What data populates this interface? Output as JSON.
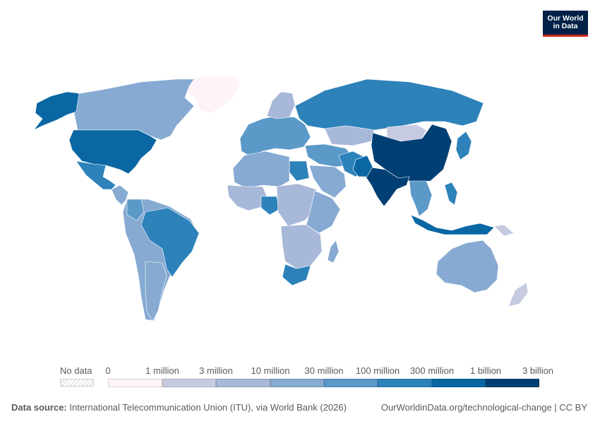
{
  "logo": {
    "line1": "Our World",
    "line2": "in Data"
  },
  "legend": {
    "no_data": "No data",
    "bins": [
      {
        "label": "0",
        "color": "#fdf3f8"
      },
      {
        "label": "1 million",
        "color": "#e1e0ee"
      },
      {
        "label": "3 million",
        "color": "#c6cbe2"
      },
      {
        "label": "10 million",
        "color": "#a7b8d8"
      },
      {
        "label": "30 million",
        "color": "#86aad2"
      },
      {
        "label": "100 million",
        "color": "#5b99c8"
      },
      {
        "label": "300 million",
        "color": "#2d82ba"
      },
      {
        "label": "1 billion",
        "color": "#0a67a3"
      },
      {
        "label": "3 billion",
        "color": "#003f74"
      }
    ]
  },
  "footer": {
    "source_label": "Data source:",
    "source_text": " International Telecommunication Union (ITU), via World Bank (2026)",
    "url": "OurWorldinData.org/technological-change | CC BY"
  },
  "map_regions": [
    {
      "name": "Greenland",
      "color": "#fdf3f8"
    },
    {
      "name": "Canada",
      "color": "#86aad2"
    },
    {
      "name": "Alaska",
      "color": "#0a67a3"
    },
    {
      "name": "United States",
      "color": "#0a67a3"
    },
    {
      "name": "Mexico",
      "color": "#2d82ba"
    },
    {
      "name": "Central America",
      "color": "#86aad2"
    },
    {
      "name": "South America",
      "color": "#86aad2"
    },
    {
      "name": "Brazil",
      "color": "#2d82ba"
    },
    {
      "name": "Argentina",
      "color": "#86aad2"
    },
    {
      "name": "Colombia",
      "color": "#5b99c8"
    },
    {
      "name": "Europe",
      "color": "#5b99c8"
    },
    {
      "name": "Scandinavia",
      "color": "#a7b8d8"
    },
    {
      "name": "Russia",
      "color": "#2d82ba"
    },
    {
      "name": "Kazakhstan",
      "color": "#a7b8d8"
    },
    {
      "name": "Middle East",
      "color": "#5b99c8"
    },
    {
      "name": "Iran",
      "color": "#2d82ba"
    },
    {
      "name": "Saudi Arabia",
      "color": "#86aad2"
    },
    {
      "name": "Egypt",
      "color": "#2d82ba"
    },
    {
      "name": "North Africa",
      "color": "#86aad2"
    },
    {
      "name": "West Africa",
      "color": "#a7b8d8"
    },
    {
      "name": "Nigeria",
      "color": "#2d82ba"
    },
    {
      "name": "Central Africa",
      "color": "#a7b8d8"
    },
    {
      "name": "East Africa",
      "color": "#86aad2"
    },
    {
      "name": "Southern Africa",
      "color": "#a7b8d8"
    },
    {
      "name": "South Africa",
      "color": "#2d82ba"
    },
    {
      "name": "Madagascar",
      "color": "#86aad2"
    },
    {
      "name": "Mongolia",
      "color": "#c6cbe2"
    },
    {
      "name": "China",
      "color": "#003f74"
    },
    {
      "name": "India",
      "color": "#003f74"
    },
    {
      "name": "Pakistan",
      "color": "#0a67a3"
    },
    {
      "name": "Southeast Asia",
      "color": "#5b99c8"
    },
    {
      "name": "Indonesia",
      "color": "#0a67a3"
    },
    {
      "name": "Japan",
      "color": "#2d82ba"
    },
    {
      "name": "Philippines",
      "color": "#2d82ba"
    },
    {
      "name": "Papua New Guinea",
      "color": "#c6cbe2"
    },
    {
      "name": "Australia",
      "color": "#86aad2"
    },
    {
      "name": "New Zealand",
      "color": "#c6cbe2"
    }
  ]
}
